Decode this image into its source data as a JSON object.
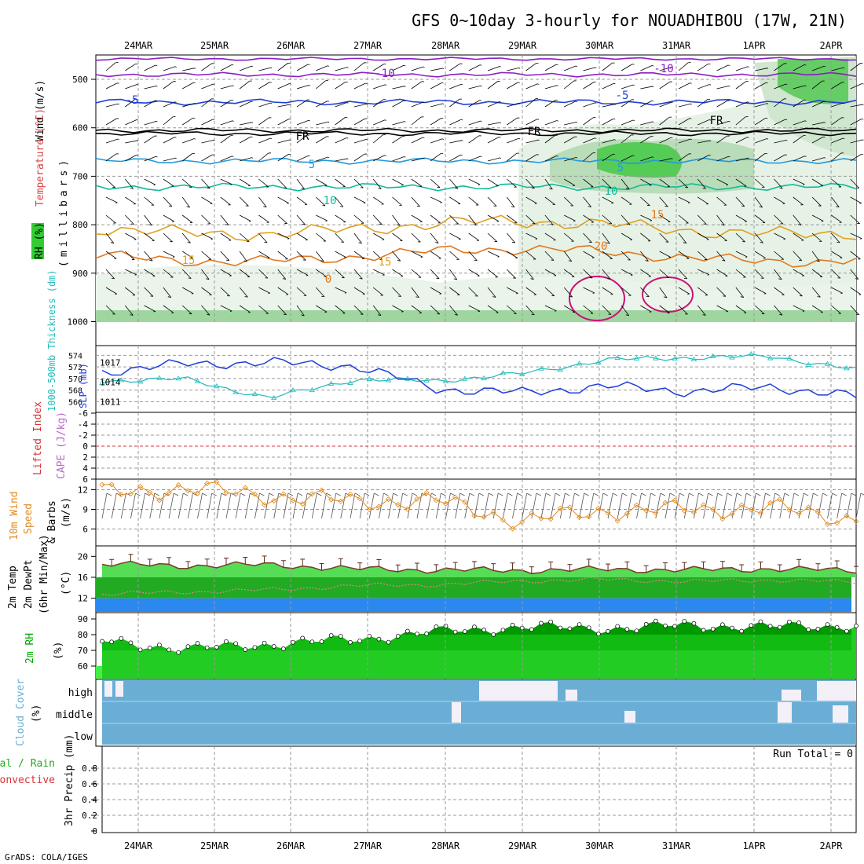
{
  "title": "GFS 0~10day 3-hourly for NOUADHIBOU (17W, 21N)",
  "footer": "GrADS: COLA/IGES",
  "run_total_label": "Run Total = 0",
  "dates": [
    "24MAR",
    "25MAR",
    "26MAR",
    "27MAR",
    "28MAR",
    "29MAR",
    "30MAR",
    "31MAR",
    "1APR",
    "2APR"
  ],
  "colors": {
    "rh_green": "#33cc33",
    "temp": "#dd4444",
    "wind": "#000000",
    "slp": "#1f3fd8",
    "thickness": "#22bbbb",
    "lifted": "#dd3333",
    "cape": "#bb66cc",
    "wind10": "#e08a1e",
    "t2m": "#44dd44",
    "dew": "#22aa22",
    "cloud": "#6aaed6",
    "rh2m": "#00aa00",
    "precip_total": "#22aa22",
    "precip_conv": "#dd3333"
  },
  "panels": {
    "upper": {
      "y_label_rh": "RH (%)",
      "y_label_temp": "Temperature (°C)",
      "y_label_wind": "Wind (m/s)",
      "y_label_p": "(millibars)",
      "yticks": [
        "500",
        "600",
        "700",
        "800",
        "900",
        "1000"
      ],
      "isotherm_labels": [
        "-10",
        "-10",
        "-5",
        "-5",
        "FR",
        "FR",
        "FR",
        "5",
        "5",
        "10",
        "10",
        "15",
        "15",
        "20",
        "15",
        "0"
      ]
    },
    "slp": {
      "label_thk": "1000-500mb Thickness (dm)",
      "label_slp": "SLP (mb)",
      "yticks_thk": [
        "574",
        "572",
        "570",
        "568",
        "566"
      ],
      "yticks_slp": [
        "1017",
        "1014",
        "1011"
      ]
    },
    "lifted": {
      "label_li": "Lifted Index",
      "label_cape": "CAPE (J/kg)",
      "yticks": [
        "-6",
        "-4",
        "-2",
        "0",
        "2",
        "4",
        "6"
      ]
    },
    "wind10": {
      "label_a": "10m Wind",
      "label_b": "Speed",
      "label_c": "(m/s)",
      "label_d": "& Barbs",
      "yticks": [
        "12",
        "9",
        "6"
      ]
    },
    "temp2m": {
      "label_a": "2m Temp",
      "label_b": "2m DewPt",
      "label_c": "(6hr Min/Max)",
      "label_d": "(°C)",
      "yticks": [
        "20",
        "16",
        "12"
      ]
    },
    "rh2m": {
      "label_a": "2m RH",
      "label_b": "(%)",
      "yticks": [
        "90",
        "80",
        "70",
        "60"
      ]
    },
    "cloud": {
      "label_a": "Cloud Cover",
      "label_b": "(%)",
      "levels": [
        "high",
        "middle",
        "low"
      ]
    },
    "precip": {
      "label_a": "Total / Rain",
      "label_b": "Convective",
      "label_c": "3hr Precip (mm)",
      "yticks": [
        "0.8",
        "0.6",
        "0.4",
        "0.2",
        "0"
      ]
    }
  },
  "chart_data": [
    {
      "type": "line",
      "title": "SLP (mb) / 1000-500mb Thickness (dm)",
      "x": [
        "24MAR",
        "25MAR",
        "26MAR",
        "27MAR",
        "28MAR",
        "29MAR",
        "30MAR",
        "31MAR",
        "1APR",
        "2APR"
      ],
      "series": [
        {
          "name": "SLP (mb)",
          "values": [
            1015.6,
            1016.8,
            1017.0,
            1016.5,
            1013.0,
            1012.4,
            1013.4,
            1012.6,
            1013.3,
            1011.8
          ]
        },
        {
          "name": "1000-500mb Thickness (dm)",
          "values": [
            569.6,
            569.9,
            566.6,
            569.8,
            569.6,
            570.8,
            573.2,
            573.6,
            573.8,
            571.5
          ]
        }
      ],
      "ylim_slp": [
        1010,
        1019
      ],
      "ylim_thk": [
        565.5,
        575
      ]
    },
    {
      "type": "line",
      "title": "10m Wind Speed (m/s)",
      "x": [
        "24MAR",
        "25MAR",
        "26MAR",
        "27MAR",
        "28MAR",
        "29MAR",
        "30MAR",
        "31MAR",
        "1APR",
        "2APR"
      ],
      "series": [
        {
          "name": "Speed",
          "values": [
            11.5,
            12.2,
            11.1,
            10.2,
            10.3,
            7.2,
            8.8,
            9.0,
            9.2,
            7.5
          ]
        }
      ],
      "ylim": [
        4.5,
        13.5
      ]
    },
    {
      "type": "area",
      "title": "2m Temp / 2m DewPt (°C)",
      "x": [
        "24MAR",
        "25MAR",
        "26MAR",
        "27MAR",
        "28MAR",
        "29MAR",
        "30MAR",
        "31MAR",
        "1APR",
        "2APR"
      ],
      "series": [
        {
          "name": "2m Temp",
          "values": [
            18.5,
            18.2,
            18.4,
            17.6,
            17.4,
            17.3,
            17.5,
            17.4,
            17.6,
            17.3
          ]
        },
        {
          "name": "2m DewPt",
          "values": [
            12.8,
            13.2,
            13.6,
            14.4,
            14.6,
            15.3,
            15.6,
            15.2,
            15.5,
            15.1
          ]
        }
      ],
      "ylim": [
        10,
        22
      ]
    },
    {
      "type": "area",
      "title": "2m RH (%)",
      "x": [
        "24MAR",
        "25MAR",
        "26MAR",
        "27MAR",
        "28MAR",
        "29MAR",
        "30MAR",
        "31MAR",
        "1APR",
        "2APR"
      ],
      "series": [
        {
          "name": "2m RH",
          "values": [
            76,
            71,
            74,
            77,
            82,
            85,
            84,
            86,
            85,
            86
          ]
        }
      ],
      "ylim": [
        53,
        93
      ]
    }
  ]
}
